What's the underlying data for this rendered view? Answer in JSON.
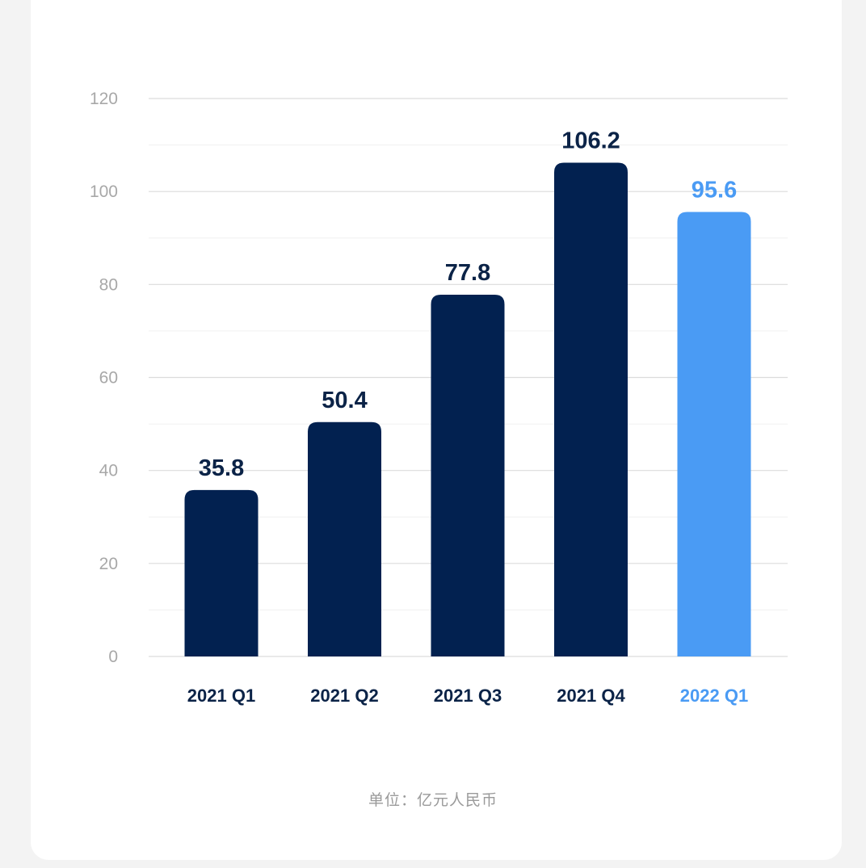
{
  "chart_data": {
    "type": "bar",
    "categories": [
      "2021 Q1",
      "2021 Q2",
      "2021 Q3",
      "2021 Q4",
      "2022 Q1"
    ],
    "values": [
      35.8,
      50.4,
      77.8,
      106.2,
      95.6
    ],
    "value_labels": [
      "35.8",
      "50.4",
      "77.8",
      "106.2",
      "95.6"
    ],
    "highlight_index": 4,
    "ylim": [
      0,
      120
    ],
    "yticks": [
      0,
      20,
      40,
      60,
      80,
      100,
      120
    ],
    "grid": true,
    "minor_grid": true,
    "title": "",
    "xlabel": "",
    "ylabel": "",
    "unit_note": "单位：亿元人民币"
  },
  "colors": {
    "bar": "#022150",
    "highlight": "#4a9bf4",
    "grid": "#dcdcdc",
    "minor_grid": "#f0f0f0",
    "tick_label": "#a8a8a8",
    "label_dark": "#0b2347"
  }
}
